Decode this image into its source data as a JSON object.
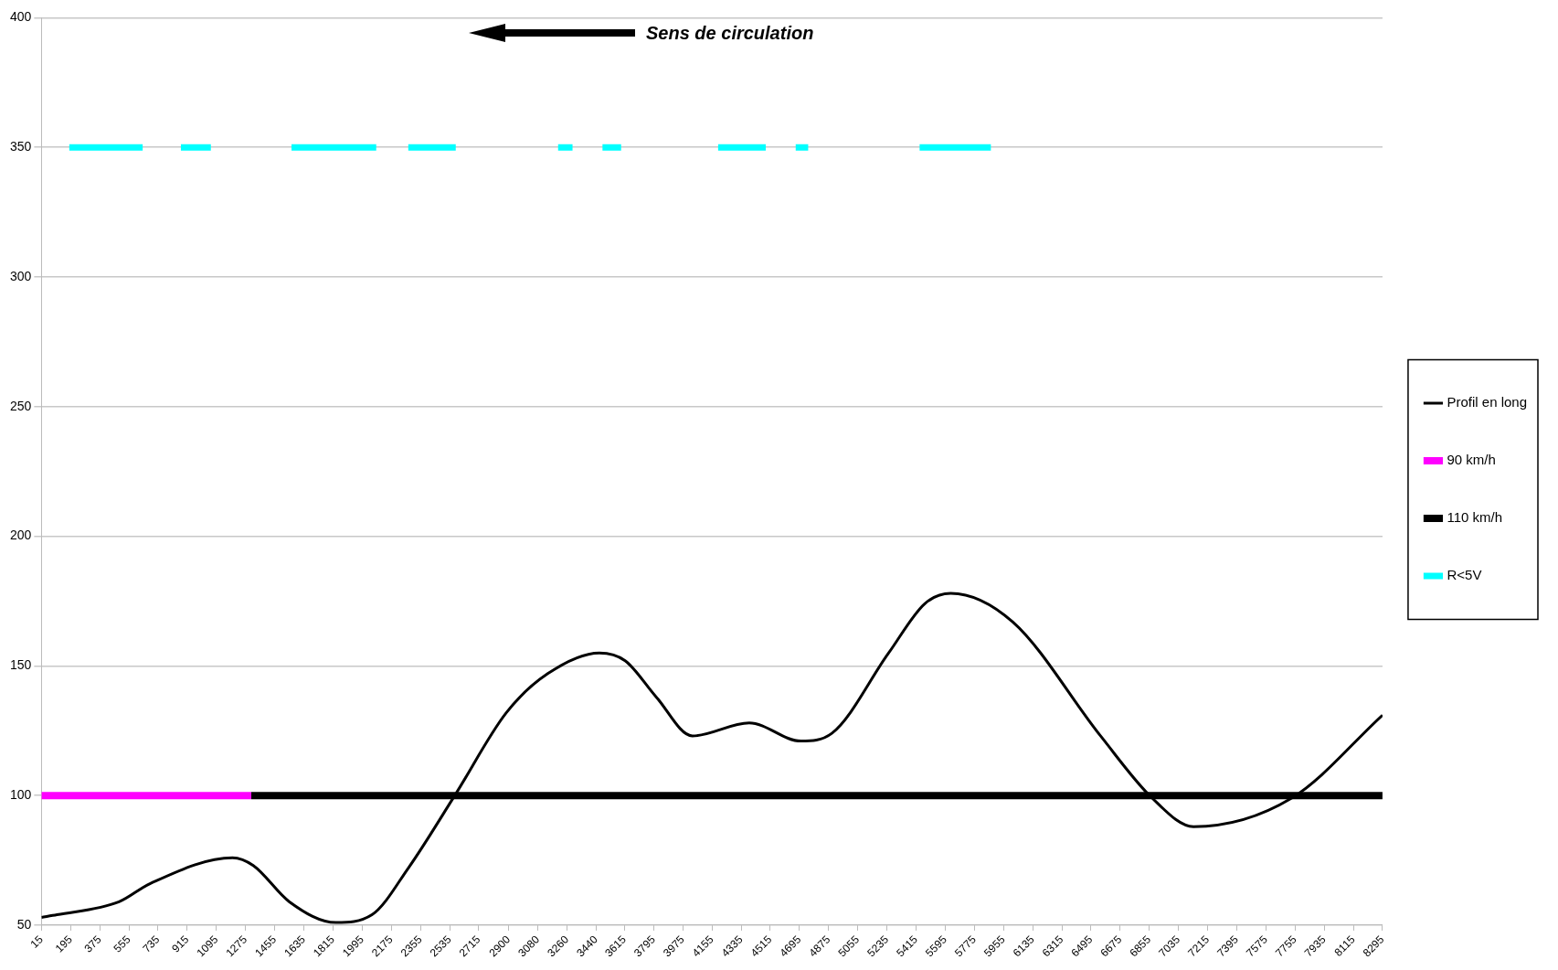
{
  "chart_data": {
    "type": "line",
    "annotations": [
      "Sens de circulation"
    ],
    "xlim": [
      15,
      8295
    ],
    "xticks": [
      15,
      195,
      375,
      555,
      735,
      915,
      1095,
      1275,
      1455,
      1635,
      1815,
      1995,
      2175,
      2355,
      2535,
      2715,
      2900,
      3080,
      3260,
      3440,
      3615,
      3795,
      3975,
      4155,
      4335,
      4515,
      4695,
      4875,
      5055,
      5235,
      5415,
      5595,
      5775,
      5955,
      6135,
      6315,
      6495,
      6675,
      6855,
      7035,
      7215,
      7395,
      7575,
      7755,
      7935,
      8115,
      8295
    ],
    "ylim": [
      50,
      400
    ],
    "yticks": [
      50,
      100,
      150,
      200,
      250,
      300,
      350,
      400
    ],
    "grid": "y",
    "legend": "right",
    "series": [
      {
        "name": "Profil en long",
        "color": "#000000",
        "x": [
          15,
          111,
          494,
          685,
          1195,
          1323,
          1546,
          1833,
          2056,
          2280,
          2567,
          2886,
          3141,
          3460,
          3619,
          3811,
          4034,
          4385,
          4704,
          4895,
          5246,
          5469,
          5629,
          6011,
          6554,
          6873,
          7128,
          7734,
          8295
        ],
        "values": [
          53,
          54,
          59,
          66,
          76,
          73,
          59,
          51,
          54,
          72,
          100,
          132,
          147,
          155,
          152,
          138,
          123,
          128,
          121,
          124,
          155,
          174,
          178,
          167,
          123,
          99,
          88,
          99,
          131
        ]
      },
      {
        "name": "90 km/h",
        "color": "#ff00ff",
        "x": [
          15,
          1310
        ],
        "values": [
          100,
          100
        ]
      },
      {
        "name": "110 km/h",
        "color": "#000000",
        "x": [
          1310,
          8295
        ],
        "values": [
          100,
          100
        ]
      },
      {
        "name": "R<5V",
        "color": "#00ffff",
        "x": [
          187,
          640,
          700,
          876,
          1061,
          1200,
          1559,
          2082,
          2200,
          2280,
          2573,
          2900,
          3205,
          3294,
          3400,
          3479,
          3594,
          3900,
          4193,
          4487,
          4600,
          4672,
          4749,
          5100,
          5437,
          5877
        ],
        "values": [
          350,
          350,
          null,
          350,
          350,
          null,
          350,
          350,
          null,
          350,
          350,
          null,
          350,
          350,
          null,
          350,
          350,
          null,
          350,
          350,
          null,
          350,
          350,
          null,
          350,
          350
        ]
      }
    ]
  }
}
